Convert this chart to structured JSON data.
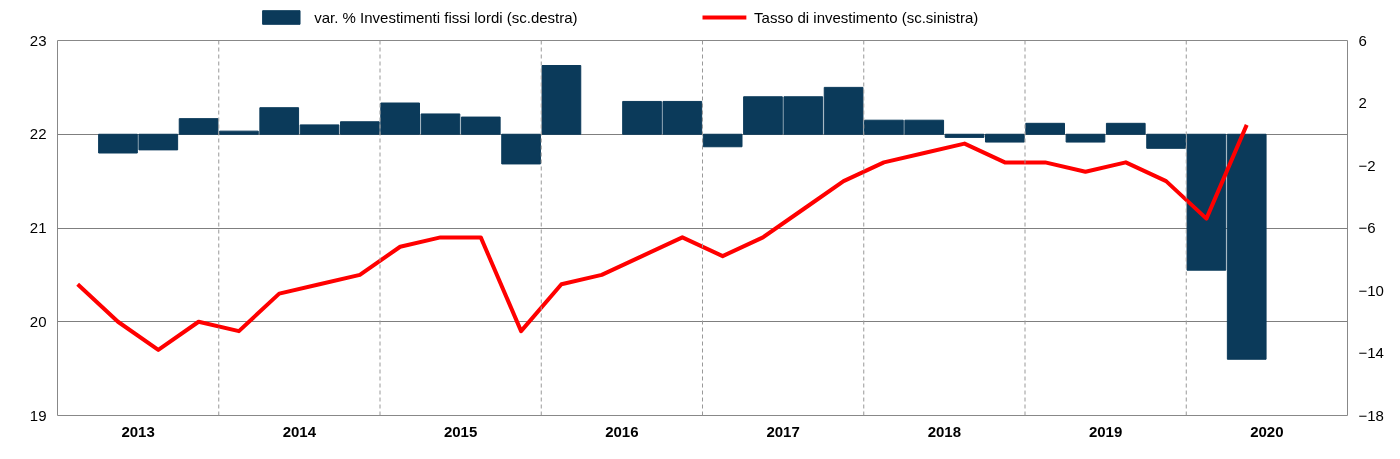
{
  "chart_data": {
    "type": "bar",
    "x": [
      2013.125,
      2013.375,
      2013.625,
      2013.875,
      2014.125,
      2014.375,
      2014.625,
      2014.875,
      2015.125,
      2015.375,
      2015.625,
      2015.875,
      2016.125,
      2016.375,
      2016.625,
      2016.875,
      2017.125,
      2017.375,
      2017.625,
      2017.875,
      2018.125,
      2018.375,
      2018.625,
      2018.875,
      2019.125,
      2019.375,
      2019.625,
      2019.875,
      2020.125,
      2020.375
    ],
    "series": [
      {
        "name": "var. % Investimenti fissi lordi (sc.destra)",
        "axis": "y2",
        "color": "#0b3a5a",
        "values": [
          null,
          -1.2,
          -1.0,
          1.0,
          0.2,
          1.7,
          0.6,
          0.8,
          2.0,
          1.3,
          1.1,
          -1.9,
          4.4,
          null,
          2.1,
          2.1,
          -0.8,
          2.4,
          2.4,
          3.0,
          0.9,
          0.9,
          -0.2,
          -0.5,
          0.7,
          -0.5,
          0.7,
          -0.9,
          -8.7,
          -14.4
        ]
      },
      {
        "name": "Tasso di investimento (sc.sinistra)",
        "type": "line",
        "color": "#ff0000",
        "values": [
          20.4,
          20.0,
          19.7,
          20.0,
          19.9,
          20.3,
          20.4,
          20.5,
          20.8,
          20.9,
          20.9,
          19.9,
          20.4,
          20.5,
          20.7,
          20.9,
          20.7,
          20.9,
          21.2,
          21.5,
          21.7,
          21.8,
          21.9,
          21.7,
          21.7,
          21.6,
          21.7,
          21.5,
          21.1,
          22.1
        ]
      }
    ],
    "xlim": [
      2013,
      2021
    ],
    "xticks": [
      {
        "value": 2013.5,
        "label": "2013"
      },
      {
        "value": 2014.5,
        "label": "2014"
      },
      {
        "value": 2015.5,
        "label": "2015"
      },
      {
        "value": 2016.5,
        "label": "2016"
      },
      {
        "value": 2017.5,
        "label": "2017"
      },
      {
        "value": 2018.5,
        "label": "2018"
      },
      {
        "value": 2019.5,
        "label": "2019"
      },
      {
        "value": 2020.5,
        "label": "2020"
      }
    ],
    "ylim": [
      19,
      23
    ],
    "yticks": [
      19,
      20,
      21,
      22,
      23
    ],
    "y2lim": [
      -18,
      6
    ],
    "y2ticks": [
      -18,
      -14,
      -10,
      -6,
      -2,
      2,
      6
    ],
    "ref_lines": [
      {
        "axis": "x",
        "value": 2014,
        "color": "#999999",
        "line_style": "dashed"
      },
      {
        "axis": "x",
        "value": 2015,
        "color": "#999999",
        "line_style": "dashed"
      },
      {
        "axis": "x",
        "value": 2016,
        "color": "#999999",
        "line_style": "dashed"
      },
      {
        "axis": "x",
        "value": 2017,
        "color": "#999999",
        "line_style": "dashed"
      },
      {
        "axis": "x",
        "value": 2018,
        "color": "#999999",
        "line_style": "dashed"
      },
      {
        "axis": "x",
        "value": 2019,
        "color": "#999999",
        "line_style": "dashed"
      },
      {
        "axis": "x",
        "value": 2020,
        "color": "#999999",
        "line_style": "dashed"
      }
    ],
    "grid": "y",
    "legend": "top"
  }
}
